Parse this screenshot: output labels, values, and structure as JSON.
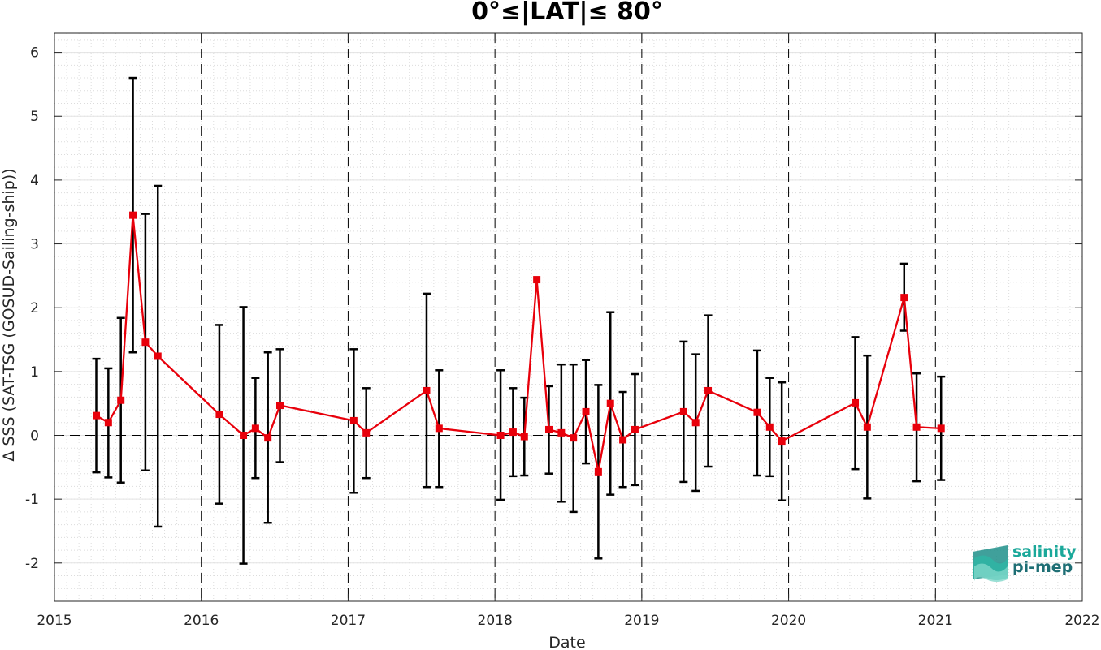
{
  "chart_data": {
    "type": "scatter",
    "title": "0°≤|LAT|≤ 80°",
    "xlabel": "Date",
    "ylabel": "Δ SSS (SAT-TSG (GOSUD-Sailing-ship))",
    "xlim": [
      "2015-01-01",
      "2022-01-01"
    ],
    "ylim": [
      -2.6,
      6.3
    ],
    "x_ticks": [
      "2015",
      "2016",
      "2017",
      "2018",
      "2019",
      "2020",
      "2021",
      "2022"
    ],
    "y_ticks": [
      "-2",
      "-1",
      "0",
      "1",
      "2",
      "3",
      "4",
      "5",
      "6"
    ],
    "grid": true,
    "year_separators": "dashed vertical lines at each year start",
    "reference_line": 0,
    "series": [
      {
        "marker": "square",
        "color": "#e8000b",
        "errorbar_color": "#000000",
        "points": [
          {
            "x": "2015-04-15",
            "y": 0.31,
            "lo": -0.58,
            "hi": 1.2
          },
          {
            "x": "2015-05-15",
            "y": 0.2,
            "lo": -0.66,
            "hi": 1.05
          },
          {
            "x": "2015-06-15",
            "y": 0.55,
            "lo": -0.74,
            "hi": 1.84
          },
          {
            "x": "2015-07-15",
            "y": 3.45,
            "lo": 1.3,
            "hi": 5.6
          },
          {
            "x": "2015-08-15",
            "y": 1.46,
            "lo": -0.55,
            "hi": 3.47
          },
          {
            "x": "2015-09-15",
            "y": 1.24,
            "lo": -1.43,
            "hi": 3.91
          },
          {
            "x": "2016-02-15",
            "y": 0.33,
            "lo": -1.07,
            "hi": 1.73
          },
          {
            "x": "2016-04-15",
            "y": 0.0,
            "lo": -2.01,
            "hi": 2.01
          },
          {
            "x": "2016-05-15",
            "y": 0.11,
            "lo": -0.67,
            "hi": 0.9
          },
          {
            "x": "2016-06-15",
            "y": -0.04,
            "lo": -1.37,
            "hi": 1.3
          },
          {
            "x": "2016-07-15",
            "y": 0.47,
            "lo": -0.42,
            "hi": 1.35
          },
          {
            "x": "2017-01-15",
            "y": 0.23,
            "lo": -0.9,
            "hi": 1.35
          },
          {
            "x": "2017-02-15",
            "y": 0.04,
            "lo": -0.67,
            "hi": 0.74
          },
          {
            "x": "2017-07-15",
            "y": 0.7,
            "lo": -0.81,
            "hi": 2.22
          },
          {
            "x": "2017-08-15",
            "y": 0.11,
            "lo": -0.81,
            "hi": 1.02
          },
          {
            "x": "2018-01-15",
            "y": 0.0,
            "lo": -1.01,
            "hi": 1.02
          },
          {
            "x": "2018-02-15",
            "y": 0.05,
            "lo": -0.64,
            "hi": 0.74
          },
          {
            "x": "2018-03-15",
            "y": -0.02,
            "lo": -0.63,
            "hi": 0.59
          },
          {
            "x": "2018-04-15",
            "y": 2.44,
            "lo": 2.44,
            "hi": 2.44
          },
          {
            "x": "2018-05-15",
            "y": 0.09,
            "lo": -0.6,
            "hi": 0.77
          },
          {
            "x": "2018-06-15",
            "y": 0.04,
            "lo": -1.04,
            "hi": 1.11
          },
          {
            "x": "2018-07-15",
            "y": -0.04,
            "lo": -1.2,
            "hi": 1.11
          },
          {
            "x": "2018-08-15",
            "y": 0.37,
            "lo": -0.44,
            "hi": 1.18
          },
          {
            "x": "2018-09-15",
            "y": -0.57,
            "lo": -1.93,
            "hi": 0.79
          },
          {
            "x": "2018-10-15",
            "y": 0.5,
            "lo": -0.93,
            "hi": 1.93
          },
          {
            "x": "2018-11-15",
            "y": -0.07,
            "lo": -0.81,
            "hi": 0.68
          },
          {
            "x": "2018-12-15",
            "y": 0.09,
            "lo": -0.78,
            "hi": 0.96
          },
          {
            "x": "2019-04-15",
            "y": 0.37,
            "lo": -0.73,
            "hi": 1.47
          },
          {
            "x": "2019-05-15",
            "y": 0.2,
            "lo": -0.87,
            "hi": 1.27
          },
          {
            "x": "2019-06-15",
            "y": 0.7,
            "lo": -0.49,
            "hi": 1.88
          },
          {
            "x": "2019-10-15",
            "y": 0.36,
            "lo": -0.63,
            "hi": 1.33
          },
          {
            "x": "2019-11-15",
            "y": 0.13,
            "lo": -0.64,
            "hi": 0.9
          },
          {
            "x": "2019-12-15",
            "y": -0.09,
            "lo": -1.02,
            "hi": 0.83
          },
          {
            "x": "2020-06-15",
            "y": 0.51,
            "lo": -0.53,
            "hi": 1.54
          },
          {
            "x": "2020-07-15",
            "y": 0.13,
            "lo": -0.99,
            "hi": 1.25
          },
          {
            "x": "2020-10-15",
            "y": 2.16,
            "lo": 1.64,
            "hi": 2.69
          },
          {
            "x": "2020-11-15",
            "y": 0.13,
            "lo": -0.72,
            "hi": 0.97
          },
          {
            "x": "2021-01-15",
            "y": 0.11,
            "lo": -0.7,
            "hi": 0.92
          }
        ]
      }
    ]
  },
  "logo": {
    "line1": "salinity",
    "line2": "pi-mep",
    "color1": "#1aa89a",
    "color2": "#1e6e74"
  }
}
